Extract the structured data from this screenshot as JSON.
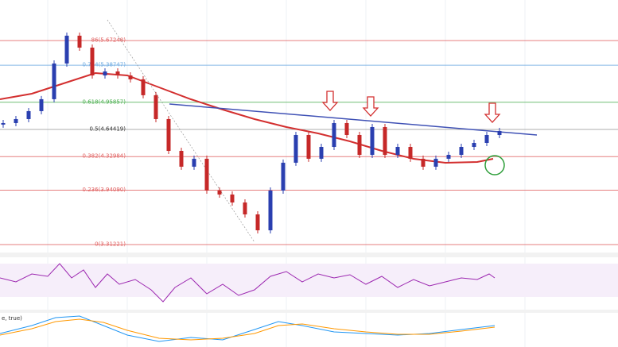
{
  "chart_data": {
    "type": "candlestick",
    "ylim": [
      3.22,
      6.142
    ],
    "fib_levels": [
      {
        "label": "86(5.67248)",
        "value": 5.67248,
        "color": "#e06060"
      },
      {
        "label": "0.764(5.38747)",
        "value": 5.38747,
        "color": "#6aa8e0"
      },
      {
        "label": "0.618(4.95857)",
        "value": 4.95857,
        "color": "#4caf50"
      },
      {
        "label": "0.5(4.64419)",
        "value": 4.64419,
        "color": "#999999"
      },
      {
        "label": "0.382(4.32984)",
        "value": 4.32984,
        "color": "#e06060"
      },
      {
        "label": "0.236(3.94090)",
        "value": 3.9409,
        "color": "#e06060"
      },
      {
        "label": "0(3.31221)",
        "value": 3.31221,
        "color": "#e06060"
      }
    ],
    "open": [
      4.7,
      4.718,
      4.764,
      4.856,
      4.994,
      5.407,
      5.729,
      5.591,
      5.269,
      5.315,
      5.269,
      5.224,
      5.04,
      4.764,
      4.396,
      4.213,
      4.305,
      3.937,
      3.891,
      3.799,
      3.661,
      3.477,
      3.937,
      4.259,
      4.58,
      4.305,
      4.442,
      4.718,
      4.58,
      4.35,
      4.672,
      4.35,
      4.442,
      4.305,
      4.213,
      4.305,
      4.35,
      4.442,
      4.488,
      4.58
    ],
    "close": [
      4.718,
      4.764,
      4.856,
      4.994,
      5.407,
      5.729,
      5.591,
      5.269,
      5.315,
      5.269,
      5.224,
      5.04,
      4.764,
      4.396,
      4.213,
      4.305,
      3.937,
      3.891,
      3.799,
      3.661,
      3.477,
      3.937,
      4.259,
      4.58,
      4.305,
      4.442,
      4.718,
      4.58,
      4.35,
      4.672,
      4.35,
      4.442,
      4.305,
      4.213,
      4.305,
      4.35,
      4.442,
      4.488,
      4.58,
      4.626
    ],
    "up_color": "#2a3fb0",
    "down_color": "#c62828",
    "indicator_label": "e, true)"
  }
}
